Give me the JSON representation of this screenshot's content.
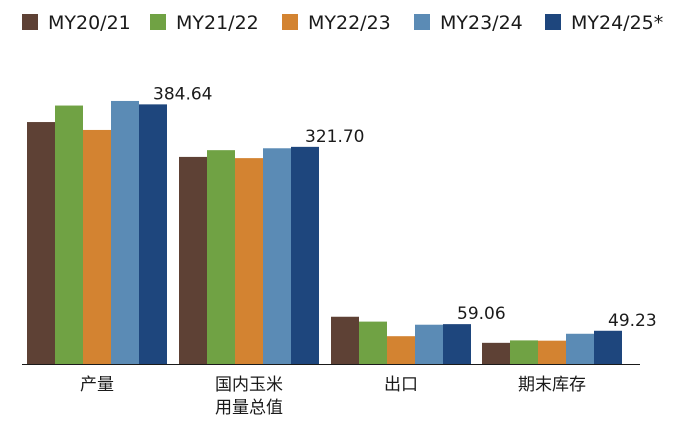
{
  "chart_data": {
    "type": "bar",
    "title": "",
    "xlabel": "",
    "ylabel": "",
    "ylim": [
      0,
      400
    ],
    "grid": false,
    "legend_position": "top",
    "categories": [
      [
        "产量"
      ],
      [
        "国内玉米",
        "用量总值"
      ],
      [
        "出口"
      ],
      [
        "期末库存"
      ]
    ],
    "series": [
      {
        "name": "MY20/21",
        "color": "#5e4135",
        "values": [
          358.45,
          306.8,
          70.0,
          31.36
        ]
      },
      {
        "name": "MY21/22",
        "color": "#70a244",
        "values": [
          382.89,
          316.8,
          62.8,
          34.98
        ]
      },
      {
        "name": "MY22/23",
        "color": "#d38331",
        "values": [
          346.74,
          305.0,
          41.2,
          34.55
        ]
      },
      {
        "name": "MY23/24",
        "color": "#5b8bb5",
        "values": [
          389.69,
          319.6,
          58.2,
          44.79
        ]
      },
      {
        "name": "MY24/25*",
        "color": "#1e467d",
        "values": [
          384.64,
          321.7,
          59.06,
          49.23
        ]
      }
    ],
    "data_labels": [
      {
        "category_index": 0,
        "series_index": 4,
        "text": "384.64"
      },
      {
        "category_index": 1,
        "series_index": 4,
        "text": "321.70"
      },
      {
        "category_index": 2,
        "series_index": 4,
        "text": "59.06"
      },
      {
        "category_index": 3,
        "series_index": 4,
        "text": "49.23"
      }
    ]
  }
}
